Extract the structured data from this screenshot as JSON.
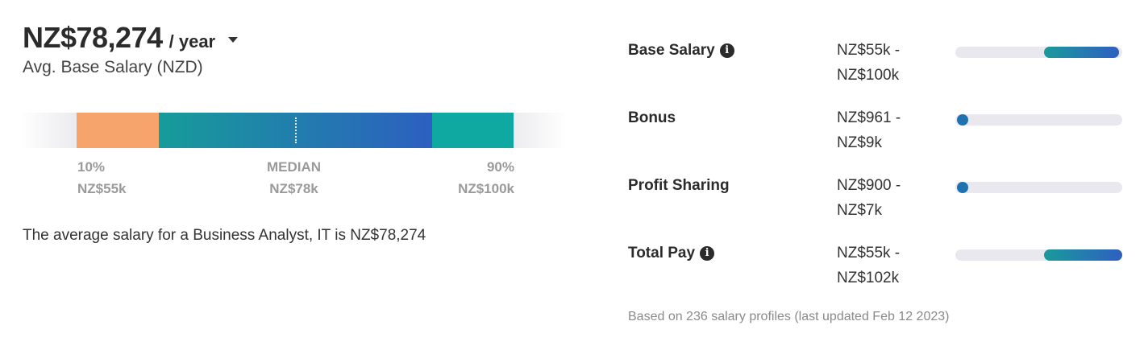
{
  "summary": {
    "amount": "NZ$78,274",
    "period": "/ year",
    "subtitle": "Avg. Base Salary (NZD)"
  },
  "range": {
    "low_pct": "10%",
    "low_value": "NZ$55k",
    "median_label": "MEDIAN",
    "median_value": "NZ$78k",
    "high_pct": "90%",
    "high_value": "NZ$100k",
    "colors": {
      "low": "#f7a46c",
      "mid_start": "#169c9a",
      "mid_end": "#2d5fc0",
      "high": "#0fa9a2"
    }
  },
  "average_text": "The average salary for a Business Analyst, IT is NZ$78,274",
  "compensation": [
    {
      "label": "Base Salary",
      "has_info": true,
      "range_low": "NZ$55k -",
      "range_high": "NZ$100k",
      "bar_start": 0.53,
      "bar_end": 0.98
    },
    {
      "label": "Bonus",
      "has_info": false,
      "range_low": "NZ$961 -",
      "range_high": "NZ$9k",
      "bar_start": 0.0,
      "bar_end": 0.04
    },
    {
      "label": "Profit Sharing",
      "has_info": false,
      "range_low": "NZ$900 -",
      "range_high": "NZ$7k",
      "bar_start": 0.0,
      "bar_end": 0.03
    },
    {
      "label": "Total Pay",
      "has_info": true,
      "range_low": "NZ$55k -",
      "range_high": "NZ$102k",
      "bar_start": 0.53,
      "bar_end": 1.0
    }
  ],
  "footnote": "Based on 236 salary profiles (last updated Feb 12 2023)"
}
